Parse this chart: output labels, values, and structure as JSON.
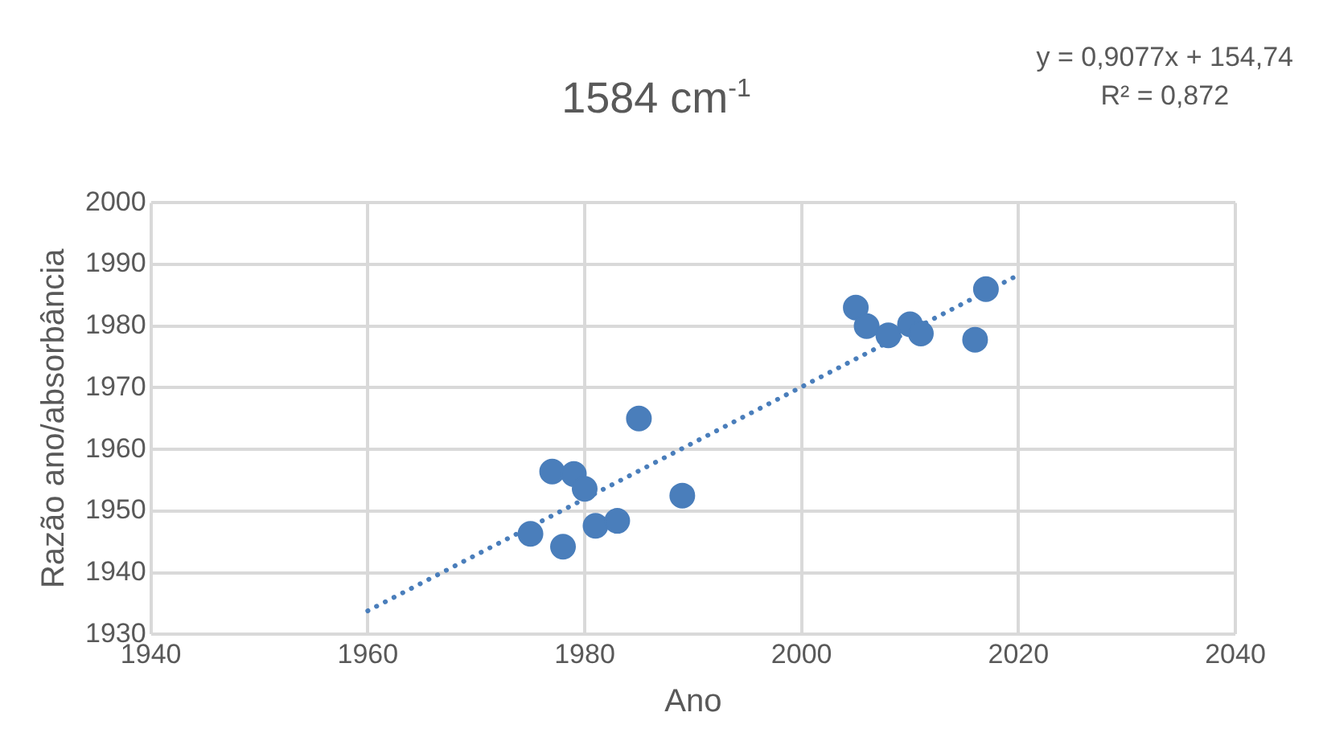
{
  "chart_data": {
    "type": "scatter",
    "title": "1584 cm$^{-1}$",
    "xlabel": "Ano",
    "ylabel": "Razão ano/absorbância",
    "annotations": [
      "y = 0,9077x + 154,74",
      "R² = 0,872"
    ],
    "xlim": [
      1940,
      2040
    ],
    "xticks": [
      1940,
      1960,
      1980,
      2000,
      2020,
      2040
    ],
    "ylim": [
      1930,
      2000
    ],
    "yticks": [
      1930,
      1940,
      1950,
      1960,
      1970,
      1980,
      1990,
      2000
    ],
    "grid": true,
    "marker": "circle",
    "series": [
      {
        "type": "scatter",
        "color": "#4a7ebb",
        "x": [
          1975,
          1977,
          1978,
          1979,
          1980,
          1981,
          1983,
          1985,
          1989,
          2005,
          2006,
          2008,
          2010,
          2011,
          2016,
          2017
        ],
        "values": [
          1946.3,
          1956.4,
          1944.2,
          1956,
          1953.6,
          1947.6,
          1948.4,
          1965,
          1952.5,
          1983,
          1980,
          1978.5,
          1980.3,
          1978.8,
          1977.8,
          1986
        ]
      },
      {
        "type": "line",
        "color": "#4a7ebb",
        "line_style": "dotted",
        "marker": "none",
        "x": [
          1960,
          2020
        ],
        "values": [
          1933.8,
          1988.3
        ]
      }
    ]
  }
}
